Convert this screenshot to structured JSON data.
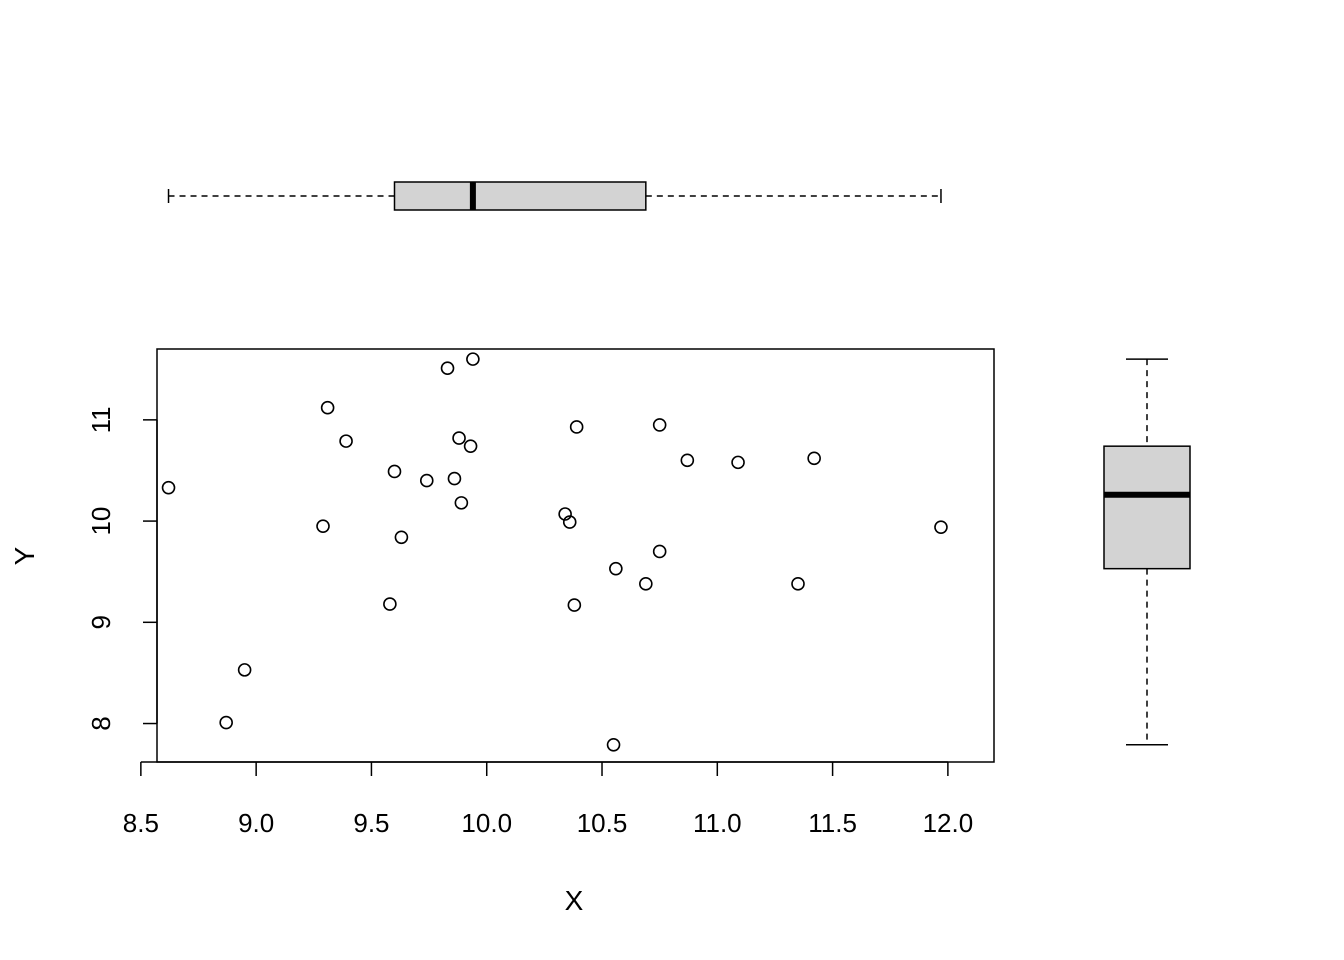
{
  "chart_data": [
    {
      "type": "scatter",
      "title": "",
      "xlabel": "X",
      "ylabel": "Y",
      "xlim": [
        8.57,
        12.2
      ],
      "ylim": [
        7.62,
        11.7
      ],
      "x_ticks": [
        "8.5",
        "9.0",
        "9.5",
        "10.0",
        "10.5",
        "11.0",
        "11.5",
        "12.0"
      ],
      "y_ticks": [
        "8",
        "9",
        "10",
        "11"
      ],
      "grid": false,
      "points": [
        {
          "x": 8.62,
          "y": 10.33
        },
        {
          "x": 8.87,
          "y": 8.01
        },
        {
          "x": 8.95,
          "y": 8.53
        },
        {
          "x": 9.29,
          "y": 9.95
        },
        {
          "x": 9.31,
          "y": 11.12
        },
        {
          "x": 9.39,
          "y": 10.79
        },
        {
          "x": 9.58,
          "y": 9.18
        },
        {
          "x": 9.6,
          "y": 10.49
        },
        {
          "x": 9.63,
          "y": 9.84
        },
        {
          "x": 9.74,
          "y": 10.4
        },
        {
          "x": 9.83,
          "y": 11.51
        },
        {
          "x": 9.86,
          "y": 10.42
        },
        {
          "x": 9.88,
          "y": 10.82
        },
        {
          "x": 9.89,
          "y": 10.18
        },
        {
          "x": 9.93,
          "y": 10.74
        },
        {
          "x": 9.94,
          "y": 11.6
        },
        {
          "x": 10.34,
          "y": 10.07
        },
        {
          "x": 10.36,
          "y": 9.99
        },
        {
          "x": 10.38,
          "y": 9.17
        },
        {
          "x": 10.39,
          "y": 10.93
        },
        {
          "x": 10.55,
          "y": 7.79
        },
        {
          "x": 10.56,
          "y": 9.53
        },
        {
          "x": 10.69,
          "y": 9.38
        },
        {
          "x": 10.75,
          "y": 9.7
        },
        {
          "x": 10.75,
          "y": 10.95
        },
        {
          "x": 10.87,
          "y": 10.6
        },
        {
          "x": 11.09,
          "y": 10.58
        },
        {
          "x": 11.35,
          "y": 9.38
        },
        {
          "x": 11.42,
          "y": 10.62
        },
        {
          "x": 11.97,
          "y": 9.94
        }
      ]
    },
    {
      "type": "boxplot",
      "orientation": "horizontal",
      "variable": "X",
      "min": 8.62,
      "q1": 9.6,
      "median": 9.94,
      "q3": 10.69,
      "max": 11.97,
      "fill": "#d3d3d3"
    },
    {
      "type": "boxplot",
      "orientation": "vertical",
      "variable": "Y",
      "min": 7.79,
      "q1": 9.53,
      "median": 10.26,
      "q3": 10.74,
      "max": 11.6,
      "fill": "#d3d3d3"
    }
  ]
}
